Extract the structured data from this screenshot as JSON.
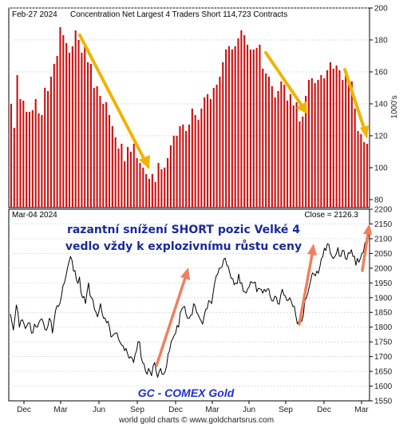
{
  "colors": {
    "bar": "#cc1111",
    "price_line": "#000000",
    "arrow_down": "#f0b400",
    "arrow_up": "#ef7f5e",
    "annotation_text": "#1a2a9a",
    "gc_label": "#1c2fd0",
    "grid": "#cfcfcf"
  },
  "footer": {
    "credit": "world gold charts © www.goldchartsrus.com"
  },
  "annotation": {
    "line1": "razantní snížení SHORT pozic Velké 4",
    "line2": "vedlo vždy k explozivnímu růstu ceny"
  },
  "chart_data": [
    {
      "type": "bar",
      "title": "Concentration Net Largest 4 Traders Short 114,723 Contracts",
      "date_label": "Feb-27  2024",
      "ylabel": "1000's",
      "ylim": [
        75,
        200
      ],
      "yticks": [
        80,
        100,
        120,
        140,
        160,
        180,
        200
      ],
      "grid": true,
      "values": [
        140,
        125,
        158,
        143,
        142,
        135,
        135,
        136,
        143,
        134,
        133,
        150,
        148,
        157,
        165,
        170,
        188,
        183,
        178,
        172,
        176,
        186,
        180,
        172,
        178,
        166,
        165,
        150,
        151,
        145,
        140,
        141,
        133,
        126,
        119,
        112,
        115,
        104,
        113,
        110,
        115,
        106,
        103,
        100,
        96,
        93,
        96,
        91,
        103,
        99,
        100,
        106,
        114,
        120,
        120,
        126,
        127,
        123,
        127,
        137,
        133,
        130,
        137,
        144,
        146,
        143,
        150,
        152,
        157,
        166,
        174,
        176,
        174,
        176,
        181,
        186,
        183,
        177,
        174,
        174,
        175,
        177,
        162,
        159,
        157,
        151,
        144,
        148,
        154,
        152,
        142,
        146,
        139,
        141,
        129,
        132,
        145,
        155,
        156,
        153,
        155,
        158,
        156,
        161,
        166,
        162,
        164,
        161,
        155,
        158,
        155,
        154,
        137,
        123,
        121,
        116,
        115
      ]
    },
    {
      "type": "line",
      "title": "GC - COMEX Gold",
      "date_label": "Mar-04  2024",
      "close_label": "Close = 2126.3",
      "ylim": [
        1550,
        2200
      ],
      "yticks": [
        1550,
        1600,
        1650,
        1700,
        1750,
        1800,
        1850,
        1900,
        1950,
        2000,
        2050,
        2100,
        2150,
        2200
      ],
      "x_tick_labels": [
        "Dec",
        "Mar",
        "Jun",
        "Sep",
        "Dec",
        "Mar",
        "Jun",
        "Sep",
        "Dec",
        "Mar"
      ],
      "grid": true,
      "values": [
        1845,
        1790,
        1875,
        1800,
        1825,
        1795,
        1815,
        1780,
        1810,
        1800,
        1825,
        1815,
        1790,
        1830,
        1780,
        1855,
        1870,
        1905,
        1950,
        2000,
        2040,
        1990,
        1960,
        1970,
        1900,
        1880,
        1950,
        1900,
        1860,
        1835,
        1880,
        1830,
        1815,
        1800,
        1770,
        1780,
        1760,
        1740,
        1720,
        1710,
        1700,
        1680,
        1720,
        1750,
        1680,
        1650,
        1660,
        1635,
        1680,
        1630,
        1660,
        1640,
        1670,
        1720,
        1760,
        1780,
        1800,
        1860,
        1870,
        1830,
        1840,
        1880,
        1850,
        1830,
        1810,
        1860,
        1890,
        1880,
        1950,
        1980,
        2000,
        2030,
        2010,
        1985,
        1965,
        1950,
        1980,
        1950,
        1920,
        1930,
        1955,
        1950,
        1920,
        1930,
        1915,
        1920,
        1930,
        1890,
        1905,
        1880,
        1910,
        1910,
        1890,
        1900,
        1870,
        1840,
        1820,
        1820,
        1890,
        1915,
        1960,
        1980,
        1990,
        2005,
        2040,
        2060,
        2080,
        2040,
        2040,
        2070,
        2040,
        2060,
        2030,
        2050,
        2040,
        2010,
        2020,
        2050,
        2085,
        2126
      ]
    }
  ]
}
